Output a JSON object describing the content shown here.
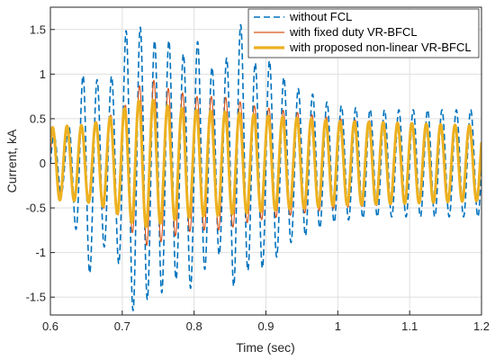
{
  "chart_data": {
    "type": "line",
    "title": "",
    "xlabel": "Time (sec)",
    "ylabel": "Current, kA",
    "xlim": [
      0.6,
      1.2
    ],
    "ylim": [
      -1.7,
      1.75
    ],
    "xticks": [
      "0.6",
      "0.7",
      "0.8",
      "0.9",
      "1",
      "1.1",
      "1.2"
    ],
    "xtick_values": [
      0.6,
      0.7,
      0.8,
      0.9,
      1.0,
      1.1,
      1.2
    ],
    "yticks": [
      "-1.5",
      "-1",
      "-0.5",
      "0",
      "0.5",
      "1",
      "1.5"
    ],
    "ytick_values": [
      -1.5,
      -1.0,
      -0.5,
      0,
      0.5,
      1.0,
      1.5
    ],
    "grid": true,
    "legend_position": "top-right",
    "frequency_hz": 50,
    "series": [
      {
        "name": "without FCL",
        "color": "#0072BD",
        "style": "dashed",
        "envelope": {
          "t": [
            0.6,
            0.62,
            0.63,
            0.64,
            0.65,
            0.66,
            0.68,
            0.7,
            0.71,
            0.72,
            0.73,
            0.74,
            0.76,
            0.78,
            0.8,
            0.82,
            0.84,
            0.86,
            0.88,
            0.9,
            0.92,
            0.94,
            0.96,
            0.98,
            1.0,
            1.05,
            1.1,
            1.15,
            1.2
          ],
          "amplitude": [
            0.3,
            0.35,
            0.5,
            0.85,
            1.3,
            1.0,
            0.9,
            1.2,
            1.7,
            1.55,
            1.6,
            1.4,
            1.45,
            1.2,
            1.45,
            1.1,
            1.0,
            1.6,
            1.1,
            1.2,
            1.0,
            0.85,
            0.8,
            0.7,
            0.65,
            0.6,
            0.6,
            0.6,
            0.6
          ],
          "offset": [
            0,
            0,
            0,
            -0.1,
            -0.1,
            -0.05,
            0,
            0,
            0.05,
            -0.1,
            0,
            -0.05,
            0,
            -0.05,
            0,
            0,
            0,
            0.1,
            0,
            0,
            0,
            0,
            0,
            0,
            0,
            0,
            0,
            0,
            0
          ]
        }
      },
      {
        "name": "with fixed duty VR-BFCL",
        "color": "#D95319",
        "style": "solid",
        "envelope": {
          "t": [
            0.6,
            0.63,
            0.66,
            0.7,
            0.72,
            0.74,
            0.76,
            0.8,
            0.84,
            0.88,
            0.92,
            0.96,
            1.0,
            1.1,
            1.2
          ],
          "amplitude": [
            0.35,
            0.4,
            0.45,
            0.6,
            0.85,
            0.95,
            0.85,
            0.75,
            0.75,
            0.65,
            0.6,
            0.55,
            0.5,
            0.45,
            0.42
          ],
          "offset": [
            0,
            0,
            0,
            0,
            0,
            0,
            0,
            0,
            0,
            0,
            0,
            0,
            0,
            0,
            0
          ]
        }
      },
      {
        "name": "with proposed non-linear VR-BFCL",
        "color": "#EDB120",
        "style": "solid-thick",
        "envelope": {
          "t": [
            0.6,
            0.62,
            0.64,
            0.66,
            0.68,
            0.7,
            0.72,
            0.74,
            0.76,
            0.8,
            0.84,
            0.88,
            0.92,
            0.96,
            1.0,
            1.1,
            1.2
          ],
          "amplitude": [
            0.4,
            0.42,
            0.42,
            0.45,
            0.5,
            0.6,
            0.7,
            0.72,
            0.65,
            0.6,
            0.58,
            0.55,
            0.52,
            0.5,
            0.47,
            0.45,
            0.42
          ],
          "offset": [
            0,
            0,
            0,
            0,
            0,
            0,
            0,
            0,
            0,
            0,
            0,
            0,
            0,
            0,
            0,
            0,
            0
          ]
        }
      }
    ]
  }
}
